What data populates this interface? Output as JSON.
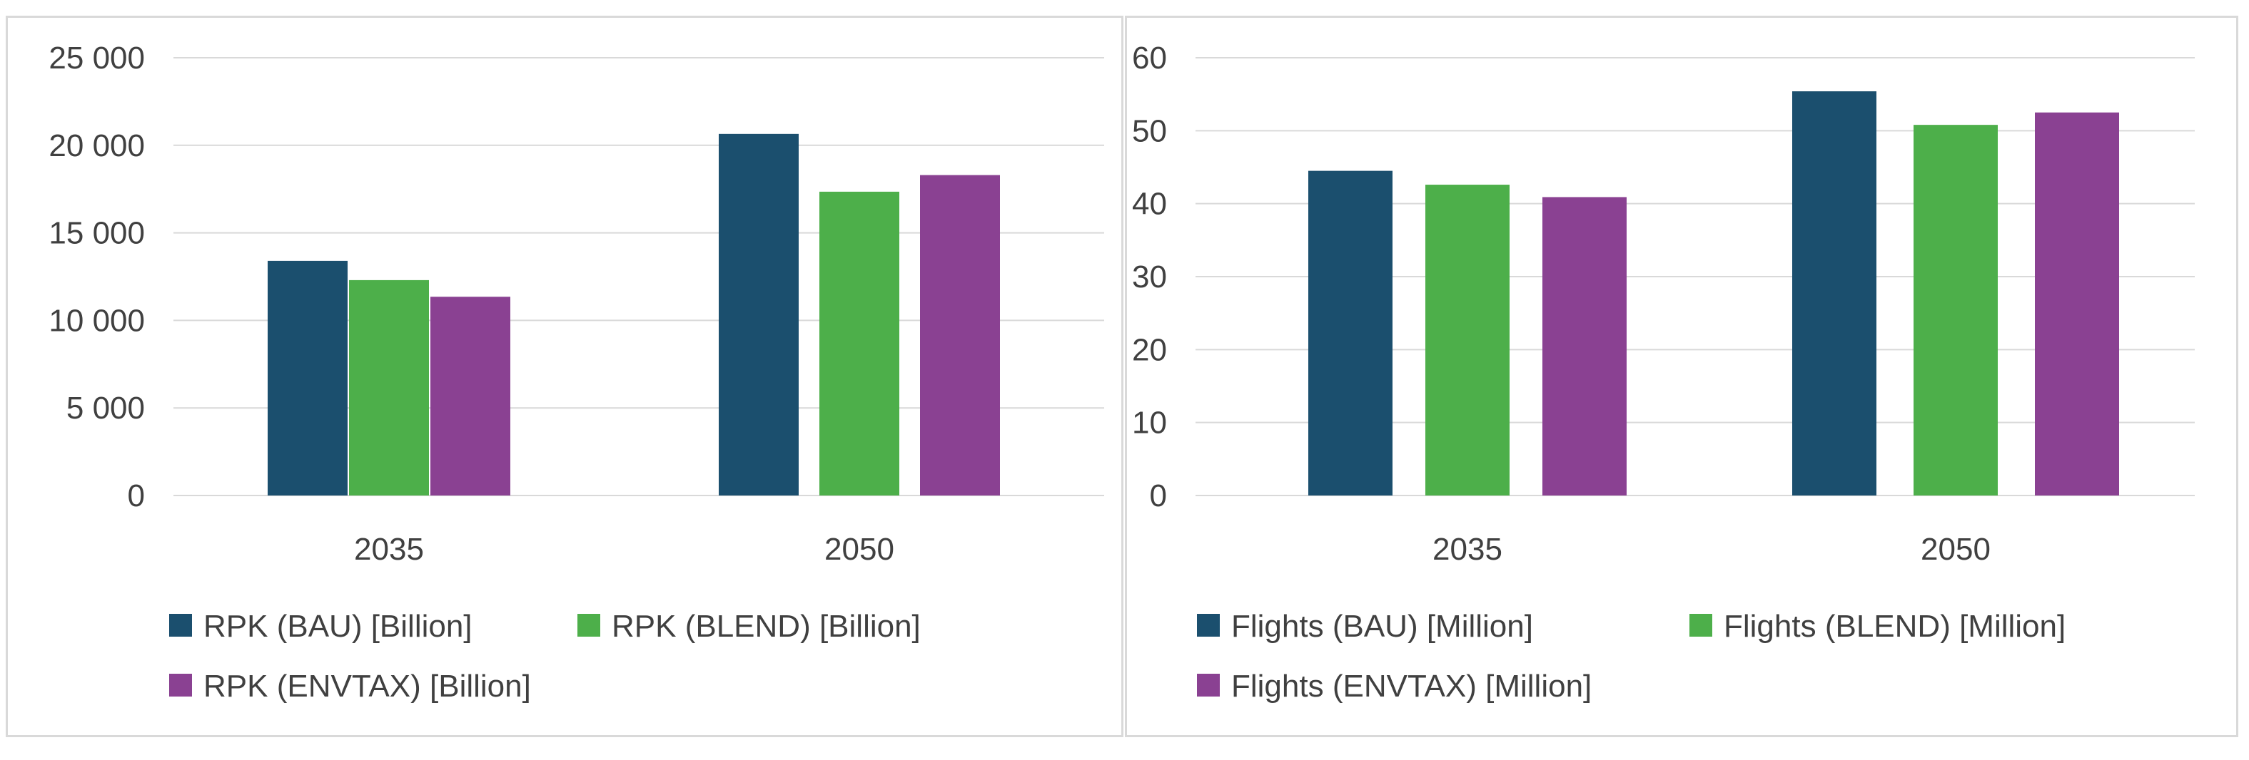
{
  "chart_data": [
    {
      "type": "bar",
      "categories": [
        "2035",
        "2050"
      ],
      "series": [
        {
          "name": "RPK (BAU) [Billion]",
          "color": "#1b4f6e",
          "values": [
            13400,
            20650
          ]
        },
        {
          "name": "RPK (BLEND) [Billion]",
          "color": "#4daf4a",
          "values": [
            12300,
            17350
          ]
        },
        {
          "name": "RPK (ENVTAX) [Billion]",
          "color": "#8a4192",
          "values": [
            11350,
            18300
          ]
        }
      ],
      "ylim": [
        0,
        25000
      ],
      "yticks": [
        0,
        5000,
        10000,
        15000,
        20000,
        25000
      ],
      "ytick_labels": [
        "0",
        "5 000",
        "10 000",
        "15 000",
        "20 000",
        "25 000"
      ],
      "grid": true,
      "legend": "bottom"
    },
    {
      "type": "bar",
      "categories": [
        "2035",
        "2050"
      ],
      "series": [
        {
          "name": "Flights (BAU) [Million]",
          "color": "#1b4f6e",
          "values": [
            44.5,
            55.4
          ]
        },
        {
          "name": "Flights (BLEND) [Million]",
          "color": "#4daf4a",
          "values": [
            42.6,
            50.8
          ]
        },
        {
          "name": "Flights (ENVTAX) [Million]",
          "color": "#8a4192",
          "values": [
            40.9,
            52.5
          ]
        }
      ],
      "ylim": [
        0,
        60
      ],
      "yticks": [
        0,
        10,
        20,
        30,
        40,
        50,
        60
      ],
      "ytick_labels": [
        "0",
        "10",
        "20",
        "30",
        "40",
        "50",
        "60"
      ],
      "grid": true,
      "legend": "bottom"
    }
  ]
}
